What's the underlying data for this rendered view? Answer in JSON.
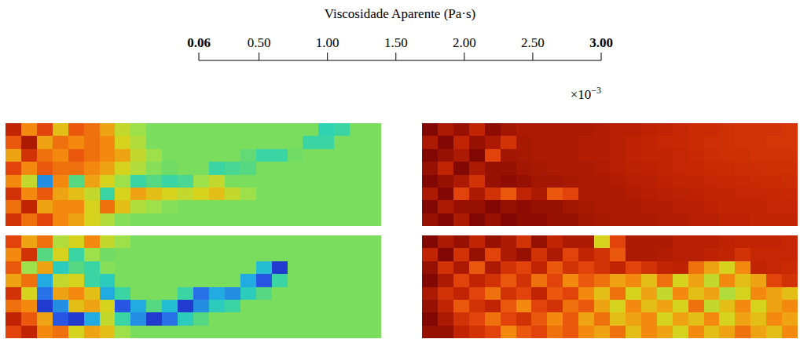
{
  "colorbar": {
    "label": "Viscosidade Aparente (Pa·s)",
    "range": [
      0.06,
      3.0
    ],
    "ticks": [
      0.06,
      {
        "value": 0.5,
        "label": "0.50"
      },
      {
        "value": 1.0,
        "label": "1.00"
      },
      {
        "value": 1.5,
        "label": "1.50"
      },
      {
        "value": 2.0,
        "label": "2.00"
      },
      {
        "value": 2.5,
        "label": "2.50"
      },
      {
        "value": 3.0,
        "label": "3.00"
      }
    ],
    "multiplier": {
      "base": "×10",
      "exponent": "−3"
    }
  },
  "chart_data": [
    {
      "type": "heatmap",
      "tick_labels": false,
      "cells": [
        [
          0.4,
          0.9,
          0.6,
          1.1,
          0.7,
          0.8,
          1.0,
          1.3,
          1.5,
          1.65,
          1.65,
          1.65,
          1.65,
          1.65,
          1.65,
          1.65,
          1.65,
          1.65,
          1.65,
          1.65,
          1.95,
          1.9,
          1.65,
          1.65
        ],
        [
          0.7,
          0.3,
          1.0,
          0.8,
          0.9,
          0.8,
          0.9,
          1.2,
          1.4,
          1.65,
          1.65,
          1.65,
          1.65,
          1.65,
          1.65,
          1.65,
          1.65,
          1.65,
          1.65,
          1.9,
          1.9,
          1.65,
          1.65,
          1.65
        ],
        [
          1.0,
          0.5,
          0.8,
          0.9,
          0.7,
          0.8,
          0.9,
          1.0,
          1.3,
          1.5,
          1.65,
          1.65,
          1.65,
          1.65,
          1.65,
          1.75,
          1.9,
          1.9,
          1.7,
          1.65,
          1.65,
          1.65,
          1.65,
          1.65
        ],
        [
          0.6,
          0.9,
          0.7,
          0.8,
          0.8,
          0.9,
          1.0,
          1.2,
          1.4,
          1.6,
          1.7,
          1.65,
          1.65,
          1.9,
          1.85,
          1.8,
          1.65,
          1.65,
          1.65,
          1.65,
          1.65,
          1.65,
          1.65,
          1.65
        ],
        [
          0.9,
          1.3,
          2.3,
          0.9,
          1.8,
          1.0,
          1.2,
          1.5,
          1.9,
          1.8,
          1.9,
          1.85,
          1.5,
          1.3,
          1.65,
          1.65,
          1.65,
          1.65,
          1.65,
          1.65,
          1.65,
          1.65,
          1.65,
          1.65
        ],
        [
          0.5,
          0.9,
          0.7,
          1.0,
          1.1,
          1.3,
          1.9,
          1.2,
          1.0,
          1.1,
          1.2,
          1.3,
          1.2,
          1.1,
          1.3,
          1.5,
          1.65,
          1.65,
          1.65,
          1.65,
          1.65,
          1.65,
          1.65,
          1.65
        ],
        [
          0.8,
          0.4,
          1.0,
          0.9,
          0.9,
          1.2,
          0.8,
          1.1,
          1.4,
          1.5,
          1.6,
          1.65,
          1.65,
          1.65,
          1.65,
          1.65,
          1.65,
          1.65,
          1.65,
          1.65,
          1.65,
          1.65,
          1.65,
          1.65
        ],
        [
          0.5,
          0.8,
          0.6,
          0.9,
          1.0,
          1.2,
          1.4,
          1.6,
          1.65,
          1.65,
          1.65,
          1.65,
          1.65,
          1.65,
          1.65,
          1.65,
          1.65,
          1.65,
          1.65,
          1.65,
          1.65,
          1.65,
          1.65,
          1.65
        ]
      ]
    },
    {
      "type": "heatmap",
      "tick_labels": false,
      "cells": [
        [
          0.1,
          0.3,
          0.2,
          0.4,
          0.15,
          0.25,
          0.3,
          0.3,
          0.3,
          0.3,
          0.3,
          0.32,
          0.35,
          0.35,
          0.38,
          0.4,
          0.42,
          0.45,
          0.45,
          0.48,
          0.5,
          0.5,
          0.5,
          0.52
        ],
        [
          0.3,
          0.1,
          0.4,
          0.2,
          0.3,
          0.5,
          0.28,
          0.3,
          0.3,
          0.3,
          0.32,
          0.33,
          0.35,
          0.38,
          0.4,
          0.42,
          0.43,
          0.45,
          0.47,
          0.48,
          0.5,
          0.5,
          0.52,
          0.52
        ],
        [
          0.1,
          0.2,
          0.3,
          0.1,
          0.6,
          0.25,
          0.28,
          0.3,
          0.3,
          0.3,
          0.32,
          0.33,
          0.35,
          0.38,
          0.4,
          0.4,
          0.42,
          0.44,
          0.46,
          0.48,
          0.48,
          0.5,
          0.5,
          0.5
        ],
        [
          0.2,
          0.4,
          0.1,
          0.3,
          0.2,
          0.2,
          0.25,
          0.28,
          0.3,
          0.3,
          0.3,
          0.32,
          0.35,
          0.37,
          0.38,
          0.4,
          0.42,
          0.43,
          0.45,
          0.45,
          0.46,
          0.47,
          0.48,
          0.48
        ],
        [
          0.1,
          0.2,
          0.3,
          0.5,
          0.2,
          0.15,
          0.2,
          0.25,
          0.25,
          0.28,
          0.3,
          0.3,
          0.32,
          0.35,
          0.36,
          0.38,
          0.4,
          0.4,
          0.42,
          0.43,
          0.44,
          0.45,
          0.45,
          0.46
        ],
        [
          0.3,
          0.1,
          0.6,
          0.3,
          0.5,
          0.7,
          0.4,
          0.3,
          0.7,
          0.6,
          0.3,
          0.3,
          0.3,
          0.32,
          0.34,
          0.36,
          0.37,
          0.38,
          0.4,
          0.4,
          0.42,
          0.42,
          0.43,
          0.44
        ],
        [
          0.1,
          0.3,
          0.2,
          0.2,
          0.1,
          0.2,
          0.15,
          0.2,
          0.2,
          0.25,
          0.28,
          0.3,
          0.3,
          0.3,
          0.32,
          0.33,
          0.35,
          0.36,
          0.38,
          0.4,
          0.4,
          0.4,
          0.42,
          0.42
        ],
        [
          0.2,
          0.1,
          0.3,
          0.1,
          0.2,
          0.1,
          0.15,
          0.15,
          0.2,
          0.2,
          0.25,
          0.28,
          0.3,
          0.3,
          0.3,
          0.32,
          0.33,
          0.35,
          0.36,
          0.38,
          0.38,
          0.4,
          0.4,
          0.4
        ]
      ]
    },
    {
      "type": "heatmap",
      "tick_labels": false,
      "cells": [
        [
          0.6,
          1.0,
          0.8,
          1.4,
          1.2,
          0.9,
          1.3,
          1.5,
          1.65,
          1.65,
          1.65,
          1.65,
          1.65,
          1.65,
          1.65,
          1.65,
          1.65,
          1.65,
          1.65,
          1.65,
          1.65,
          1.65,
          1.65,
          1.65
        ],
        [
          0.9,
          0.5,
          1.8,
          1.2,
          1.9,
          1.5,
          1.7,
          1.65,
          1.65,
          1.65,
          1.65,
          1.65,
          1.65,
          1.65,
          1.65,
          1.65,
          1.65,
          1.65,
          1.65,
          1.65,
          1.65,
          1.65,
          1.65,
          1.65
        ],
        [
          0.7,
          1.5,
          1.0,
          2.0,
          1.8,
          1.9,
          1.6,
          1.65,
          1.65,
          1.65,
          1.65,
          1.65,
          1.65,
          1.65,
          1.65,
          1.65,
          2.1,
          2.6,
          1.65,
          1.65,
          1.65,
          1.65,
          1.65,
          1.65
        ],
        [
          1.0,
          0.8,
          2.2,
          1.3,
          1.2,
          1.9,
          2.0,
          1.65,
          1.65,
          1.65,
          1.65,
          1.65,
          1.65,
          1.65,
          1.65,
          2.2,
          2.5,
          1.9,
          1.65,
          1.65,
          1.65,
          1.65,
          1.65,
          1.65
        ],
        [
          0.5,
          1.2,
          2.4,
          1.0,
          0.9,
          1.1,
          2.2,
          1.9,
          1.65,
          1.65,
          1.65,
          1.9,
          2.4,
          2.2,
          2.3,
          2.0,
          1.8,
          1.65,
          1.65,
          1.65,
          1.65,
          1.65,
          1.65,
          1.65
        ],
        [
          0.8,
          0.9,
          2.6,
          2.3,
          1.1,
          1.0,
          1.2,
          2.5,
          2.2,
          1.8,
          2.1,
          2.6,
          2.3,
          2.0,
          1.9,
          1.65,
          1.65,
          1.65,
          1.65,
          1.65,
          1.65,
          1.65,
          1.65,
          1.65
        ],
        [
          0.4,
          0.7,
          1.0,
          2.5,
          2.6,
          2.2,
          1.3,
          1.9,
          2.3,
          2.6,
          2.4,
          2.0,
          1.8,
          1.65,
          1.65,
          1.65,
          1.65,
          1.65,
          1.65,
          1.65,
          1.65,
          1.65,
          1.65,
          1.65
        ],
        [
          0.6,
          0.4,
          0.9,
          0.8,
          1.2,
          1.0,
          1.1,
          1.5,
          1.65,
          1.65,
          1.65,
          1.65,
          1.65,
          1.65,
          1.65,
          1.65,
          1.65,
          1.65,
          1.65,
          1.65,
          1.65,
          1.65,
          1.65,
          1.65
        ]
      ]
    },
    {
      "type": "heatmap",
      "tick_labels": false,
      "cells": [
        [
          0.1,
          0.3,
          0.2,
          0.4,
          0.2,
          0.3,
          0.5,
          0.2,
          0.4,
          0.3,
          0.3,
          1.2,
          0.6,
          0.3,
          0.3,
          0.3,
          0.35,
          0.35,
          0.35,
          0.38,
          0.4,
          0.4,
          0.4,
          0.42
        ],
        [
          0.4,
          0.1,
          0.5,
          0.2,
          0.6,
          0.3,
          0.2,
          0.5,
          0.3,
          0.6,
          0.4,
          0.5,
          0.7,
          0.3,
          0.3,
          0.32,
          0.35,
          0.35,
          0.38,
          0.4,
          0.5,
          0.42,
          0.42,
          0.42
        ],
        [
          0.2,
          0.5,
          0.3,
          0.7,
          0.3,
          0.5,
          0.6,
          0.4,
          0.7,
          0.5,
          0.6,
          0.5,
          0.4,
          0.6,
          0.5,
          0.4,
          0.38,
          0.8,
          1.0,
          1.2,
          0.9,
          0.4,
          0.42,
          0.45
        ],
        [
          0.1,
          0.3,
          0.6,
          0.4,
          0.5,
          0.7,
          0.5,
          0.8,
          0.6,
          0.9,
          0.7,
          0.8,
          1.0,
          0.9,
          1.1,
          0.8,
          1.2,
          1.0,
          1.3,
          0.9,
          1.1,
          1.0,
          0.6,
          0.5
        ],
        [
          0.3,
          0.5,
          0.4,
          0.6,
          0.8,
          0.5,
          0.6,
          0.4,
          0.7,
          0.6,
          0.9,
          1.1,
          0.8,
          1.2,
          1.0,
          1.3,
          0.9,
          1.1,
          1.0,
          1.4,
          1.2,
          0.9,
          1.0,
          1.1
        ],
        [
          0.2,
          0.4,
          0.7,
          0.5,
          0.4,
          0.7,
          0.9,
          0.6,
          0.5,
          0.8,
          0.7,
          1.0,
          1.2,
          0.9,
          1.1,
          1.0,
          1.2,
          0.8,
          1.3,
          1.1,
          0.9,
          1.2,
          1.0,
          0.9
        ],
        [
          0.1,
          0.3,
          0.5,
          0.6,
          0.8,
          0.6,
          0.5,
          0.7,
          0.9,
          0.7,
          1.0,
          0.8,
          1.1,
          1.0,
          0.9,
          1.2,
          1.0,
          1.1,
          0.9,
          1.2,
          1.0,
          1.1,
          0.9,
          1.0
        ],
        [
          0.2,
          0.2,
          0.4,
          0.5,
          0.6,
          0.9,
          0.7,
          0.6,
          0.8,
          0.7,
          0.9,
          1.0,
          0.8,
          1.1,
          0.9,
          1.0,
          1.2,
          0.9,
          1.1,
          1.0,
          0.8,
          1.0,
          1.1,
          0.9
        ]
      ]
    }
  ]
}
